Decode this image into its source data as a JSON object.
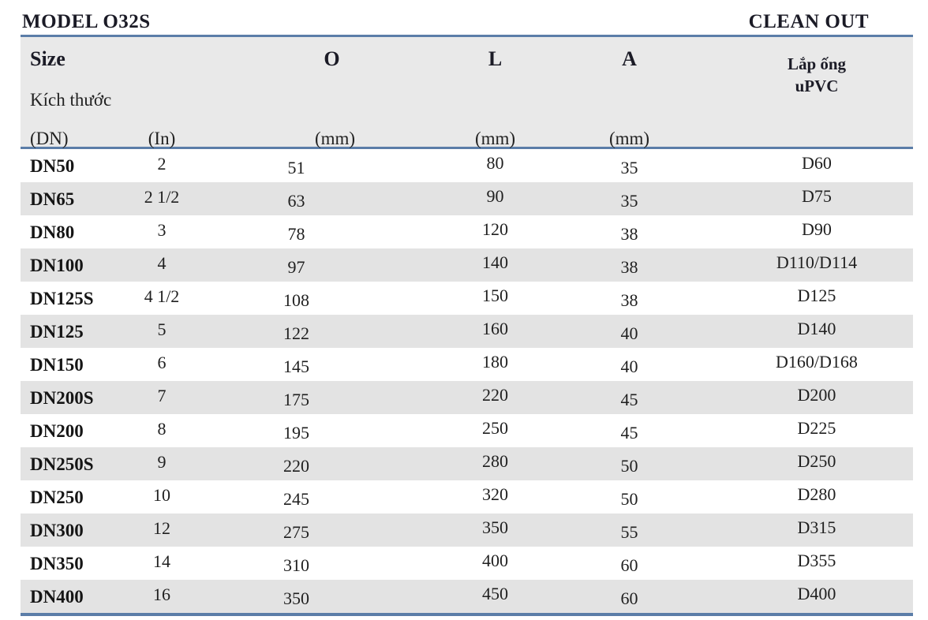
{
  "page": {
    "model_label": "MODEL O32S",
    "product_label": "CLEAN OUT"
  },
  "colors": {
    "accent_line": "#5b7da8",
    "header_bg": "#e9e9e9",
    "stripe_bg": "#e3e3e3",
    "text": "#1f1f1f"
  },
  "table": {
    "header": {
      "size_title": "Size",
      "size_subtitle": "Kích thước",
      "size_unit": "(DN)",
      "in_unit": "(In)",
      "o_label": "O",
      "l_label": "L",
      "a_label": "A",
      "mm_unit": "(mm)",
      "upvc_label": "Lắp ống\nuPVC"
    },
    "rows": [
      {
        "size": "DN50",
        "in": "2",
        "o": "51",
        "l": "80",
        "a": "35",
        "upvc": "D60"
      },
      {
        "size": "DN65",
        "in": "2 1/2",
        "o": "63",
        "l": "90",
        "a": "35",
        "upvc": "D75"
      },
      {
        "size": "DN80",
        "in": "3",
        "o": "78",
        "l": "120",
        "a": "38",
        "upvc": "D90"
      },
      {
        "size": "DN100",
        "in": "4",
        "o": "97",
        "l": "140",
        "a": "38",
        "upvc": "D110/D114"
      },
      {
        "size": "DN125S",
        "in": "4 1/2",
        "o": "108",
        "l": "150",
        "a": "38",
        "upvc": "D125"
      },
      {
        "size": "DN125",
        "in": "5",
        "o": "122",
        "l": "160",
        "a": "40",
        "upvc": "D140"
      },
      {
        "size": "DN150",
        "in": "6",
        "o": "145",
        "l": "180",
        "a": "40",
        "upvc": "D160/D168"
      },
      {
        "size": "DN200S",
        "in": "7",
        "o": "175",
        "l": "220",
        "a": "45",
        "upvc": "D200"
      },
      {
        "size": "DN200",
        "in": "8",
        "o": "195",
        "l": "250",
        "a": "45",
        "upvc": "D225"
      },
      {
        "size": "DN250S",
        "in": "9",
        "o": "220",
        "l": "280",
        "a": "50",
        "upvc": "D250"
      },
      {
        "size": "DN250",
        "in": "10",
        "o": "245",
        "l": "320",
        "a": "50",
        "upvc": "D280"
      },
      {
        "size": "DN300",
        "in": "12",
        "o": "275",
        "l": "350",
        "a": "55",
        "upvc": "D315"
      },
      {
        "size": "DN350",
        "in": "14",
        "o": "310",
        "l": "400",
        "a": "60",
        "upvc": "D355"
      },
      {
        "size": "DN400",
        "in": "16",
        "o": "350",
        "l": "450",
        "a": "60",
        "upvc": "D400"
      }
    ]
  }
}
